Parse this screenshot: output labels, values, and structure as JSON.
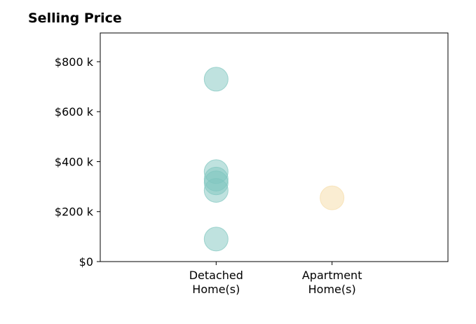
{
  "chart_data": {
    "type": "scatter",
    "title": "Selling Price",
    "xlabel": "",
    "ylabel": "",
    "categories": [
      [
        "Detached",
        "Home(s)"
      ],
      [
        "Apartment",
        "Home(s)"
      ]
    ],
    "xlim": [
      0,
      3
    ],
    "y_ticks": [
      {
        "value": 0,
        "label": "$0"
      },
      {
        "value": 200000,
        "label": "$200 k"
      },
      {
        "value": 400000,
        "label": "$400 k"
      },
      {
        "value": 600000,
        "label": "$600 k"
      },
      {
        "value": 800000,
        "label": "$800 k"
      }
    ],
    "ylim": [
      0,
      915000
    ],
    "grid": false,
    "series": [
      {
        "category_index": 0,
        "color": "#7fc6bf",
        "values": [
          730000,
          360000,
          330000,
          315000,
          285000,
          90000
        ]
      },
      {
        "category_index": 1,
        "color": "#f5dca6",
        "values": [
          255000
        ]
      }
    ]
  }
}
